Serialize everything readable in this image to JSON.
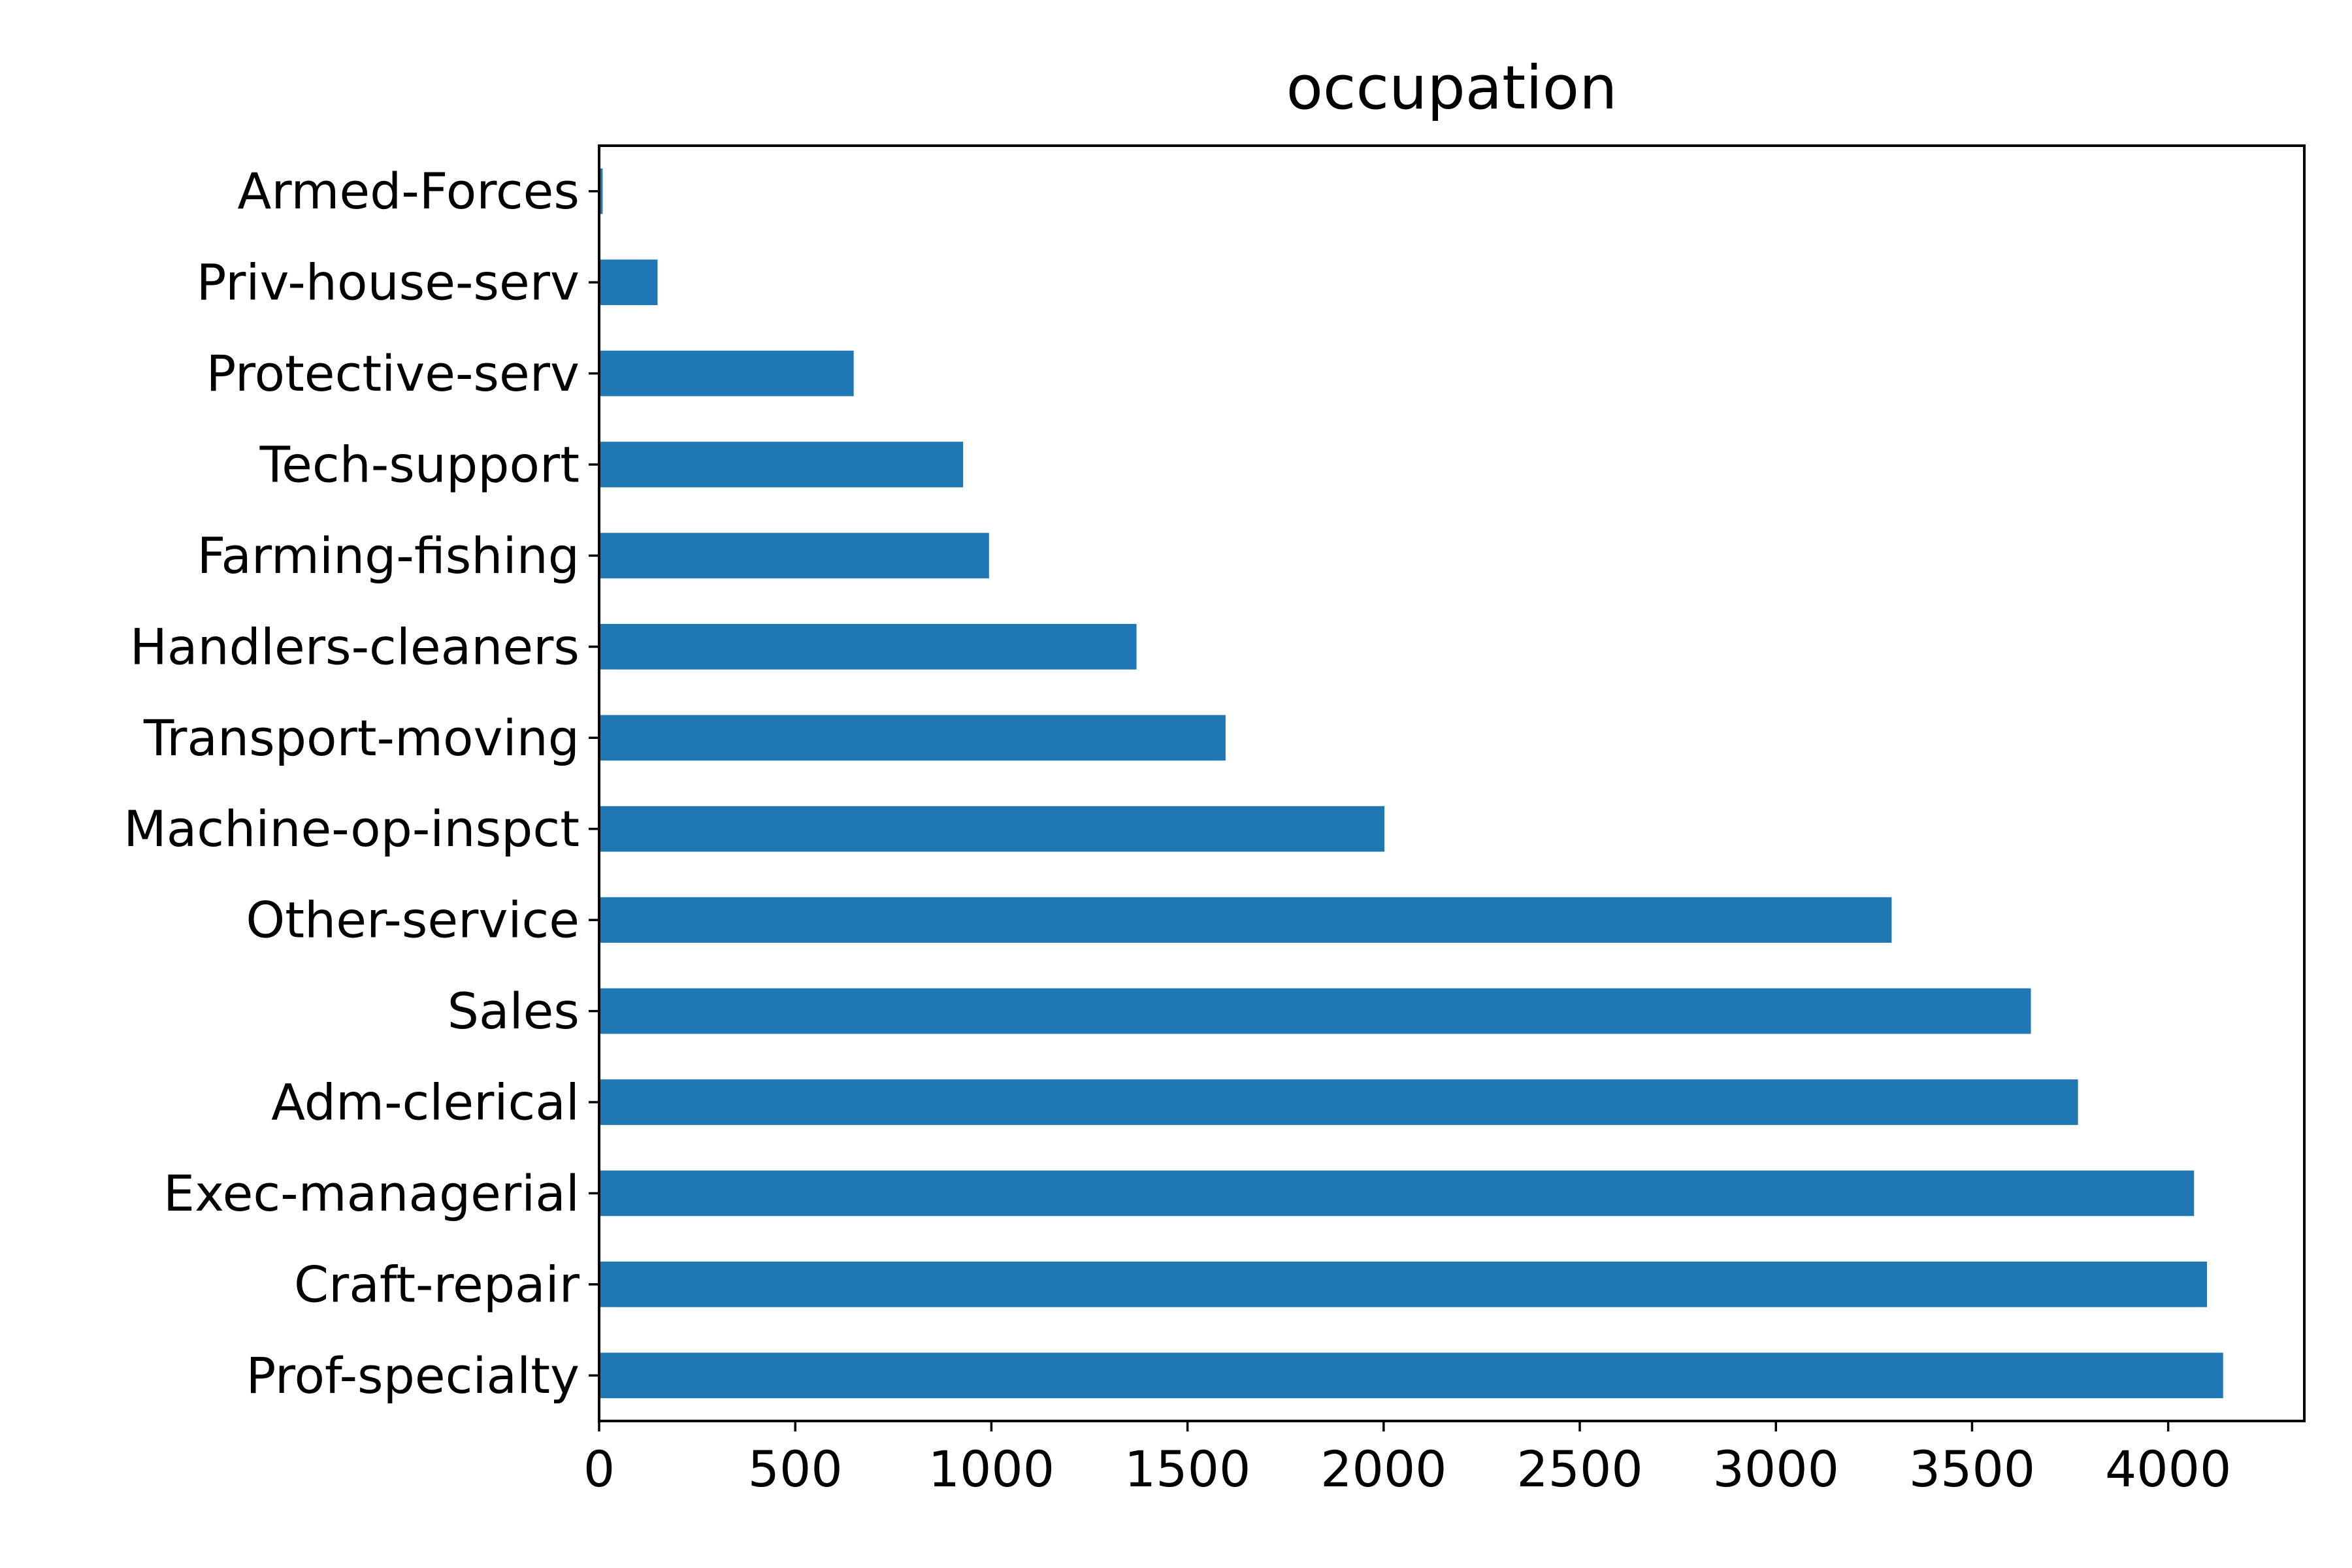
{
  "chart_data": {
    "type": "bar",
    "orientation": "horizontal",
    "title": "occupation",
    "xlabel": "",
    "ylabel": "",
    "categories": [
      "Prof-specialty",
      "Craft-repair",
      "Exec-managerial",
      "Adm-clerical",
      "Sales",
      "Other-service",
      "Machine-op-inspct",
      "Transport-moving",
      "Handlers-cleaners",
      "Farming-fishing",
      "Tech-support",
      "Protective-serv",
      "Priv-house-serv",
      "Armed-Forces"
    ],
    "values": [
      4140,
      4099,
      4066,
      3770,
      3650,
      3295,
      2002,
      1597,
      1370,
      994,
      928,
      649,
      149,
      9
    ],
    "xlim": [
      0,
      4347
    ],
    "xticks": [
      0,
      500,
      1000,
      1500,
      2000,
      2500,
      3000,
      3500,
      4000
    ],
    "grid": false,
    "legend": "none",
    "colors": {
      "bar": "#1f77b4",
      "axes": "#000000",
      "background": "#ffffff"
    }
  }
}
